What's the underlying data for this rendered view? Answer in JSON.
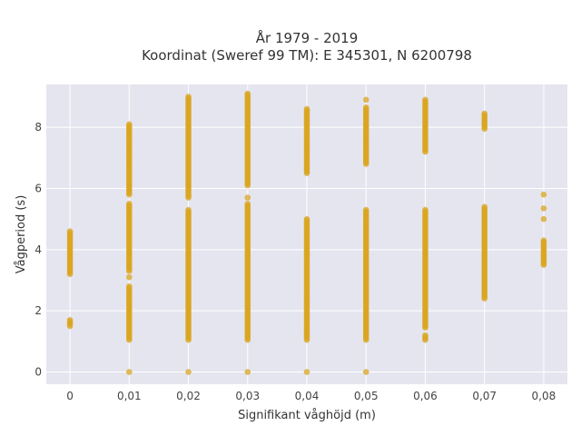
{
  "chart_data": {
    "type": "scatter",
    "title": [
      "År 1979 - 2019",
      "Koordinat (Sweref 99 TM): E 345301, N 6200798"
    ],
    "xlabel": "Signifikant våghöjd (m)",
    "ylabel": "Vågperiod (s)",
    "xlim": [
      -0.004,
      0.084
    ],
    "ylim": [
      -0.4,
      9.4
    ],
    "grid": true,
    "marker_color": "#DAA520",
    "x_ticks": [
      {
        "value": 0,
        "label": "0"
      },
      {
        "value": 0.01,
        "label": "0,01"
      },
      {
        "value": 0.02,
        "label": "0,02"
      },
      {
        "value": 0.03,
        "label": "0,03"
      },
      {
        "value": 0.04,
        "label": "0,04"
      },
      {
        "value": 0.05,
        "label": "0,05"
      },
      {
        "value": 0.06,
        "label": "0,06"
      },
      {
        "value": 0.07,
        "label": "0,07"
      },
      {
        "value": 0.08,
        "label": "0,08"
      }
    ],
    "y_ticks": [
      {
        "value": 0,
        "label": "0"
      },
      {
        "value": 2,
        "label": "2"
      },
      {
        "value": 4,
        "label": "4"
      },
      {
        "value": 6,
        "label": "6"
      },
      {
        "value": 8,
        "label": "8"
      }
    ],
    "columns": [
      {
        "x": 0,
        "segments": [
          [
            1.5,
            1.7
          ],
          [
            3.2,
            4.6
          ]
        ]
      },
      {
        "x": 0.01,
        "segments": [
          [
            0,
            0
          ],
          [
            1.05,
            2.8
          ],
          [
            3.1,
            3.1
          ],
          [
            3.3,
            5.5
          ],
          [
            5.8,
            8.1
          ]
        ]
      },
      {
        "x": 0.02,
        "segments": [
          [
            0,
            0
          ],
          [
            1.05,
            5.3
          ],
          [
            5.7,
            9.0
          ]
        ]
      },
      {
        "x": 0.03,
        "segments": [
          [
            0,
            0
          ],
          [
            1.05,
            5.5
          ],
          [
            5.7,
            5.7
          ],
          [
            6.1,
            9.1
          ]
        ]
      },
      {
        "x": 0.04,
        "segments": [
          [
            0,
            0
          ],
          [
            1.05,
            5.0
          ],
          [
            6.5,
            8.6
          ]
        ]
      },
      {
        "x": 0.05,
        "segments": [
          [
            0,
            0
          ],
          [
            1.05,
            5.3
          ],
          [
            6.8,
            8.65
          ],
          [
            8.9,
            8.9
          ]
        ]
      },
      {
        "x": 0.06,
        "segments": [
          [
            1.05,
            1.2
          ],
          [
            1.45,
            5.3
          ],
          [
            7.2,
            8.9
          ]
        ]
      },
      {
        "x": 0.07,
        "segments": [
          [
            2.4,
            5.4
          ],
          [
            7.95,
            8.45
          ]
        ]
      },
      {
        "x": 0.08,
        "segments": [
          [
            3.5,
            4.3
          ],
          [
            5.0,
            5.0
          ],
          [
            5.35,
            5.35
          ],
          [
            5.8,
            5.8
          ]
        ]
      }
    ]
  }
}
